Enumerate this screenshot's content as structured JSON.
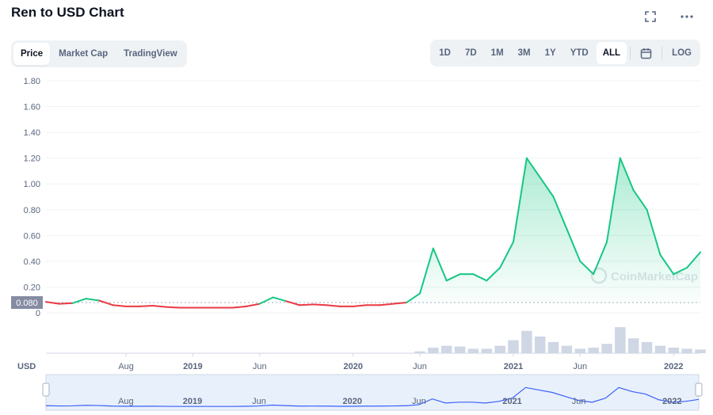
{
  "header": {
    "title": "Ren to USD Chart",
    "expand_icon": "expand-icon",
    "more_icon": "more-dots-icon"
  },
  "tabs": [
    {
      "label": "Price",
      "active": true
    },
    {
      "label": "Market Cap",
      "active": false
    },
    {
      "label": "TradingView",
      "active": false
    }
  ],
  "ranges": [
    {
      "label": "1D",
      "active": false
    },
    {
      "label": "7D",
      "active": false
    },
    {
      "label": "1M",
      "active": false
    },
    {
      "label": "3M",
      "active": false
    },
    {
      "label": "1Y",
      "active": false
    },
    {
      "label": "YTD",
      "active": false
    },
    {
      "label": "ALL",
      "active": true
    }
  ],
  "log_label": "LOG",
  "calendar_icon": "calendar-icon",
  "chart_data": {
    "type": "line",
    "ylim": [
      0,
      1.8
    ],
    "y_ticks": [
      "1.80",
      "1.60",
      "1.40",
      "1.20",
      "1.00",
      "0.80",
      "0.60",
      "0.40",
      "0.20",
      "0"
    ],
    "y_tick_values": [
      1.8,
      1.6,
      1.4,
      1.2,
      1.0,
      0.8,
      0.6,
      0.4,
      0.2,
      0
    ],
    "x_ticks": [
      {
        "label": "Aug",
        "date": "2018-08",
        "bold": false
      },
      {
        "label": "2019",
        "date": "2019-01",
        "bold": true
      },
      {
        "label": "Jun",
        "date": "2019-06",
        "bold": false
      },
      {
        "label": "2020",
        "date": "2020-01",
        "bold": true
      },
      {
        "label": "Jun",
        "date": "2020-06",
        "bold": false
      },
      {
        "label": "2021",
        "date": "2021-01",
        "bold": true
      },
      {
        "label": "Jun",
        "date": "2021-06",
        "bold": false
      },
      {
        "label": "2022",
        "date": "2022-01",
        "bold": true
      }
    ],
    "x_range": [
      "2018-02",
      "2022-03"
    ],
    "currency_label": "USD",
    "reference_price": 0.08,
    "reference_label": "0.080",
    "watermark": "CoinMarketCap",
    "up_color": "#16c784",
    "down_color": "#ea3943",
    "series": [
      {
        "dates": [
          "2018-02",
          "2018-03",
          "2018-04",
          "2018-05",
          "2018-06",
          "2018-07",
          "2018-08",
          "2018-09",
          "2018-10",
          "2018-11",
          "2018-12",
          "2019-01",
          "2019-02",
          "2019-03",
          "2019-04",
          "2019-05",
          "2019-06",
          "2019-07",
          "2019-08",
          "2019-09",
          "2019-10",
          "2019-11",
          "2019-12",
          "2020-01",
          "2020-02",
          "2020-03",
          "2020-04",
          "2020-05",
          "2020-06",
          "2020-07",
          "2020-08",
          "2020-09",
          "2020-10",
          "2020-11",
          "2020-12",
          "2021-01",
          "2021-02",
          "2021-03",
          "2021-04",
          "2021-05",
          "2021-06",
          "2021-07",
          "2021-08",
          "2021-09",
          "2021-10",
          "2021-11",
          "2021-12",
          "2022-01",
          "2022-02",
          "2022-03"
        ],
        "values": [
          0.085,
          0.07,
          0.075,
          0.11,
          0.095,
          0.06,
          0.05,
          0.05,
          0.055,
          0.045,
          0.04,
          0.04,
          0.04,
          0.04,
          0.04,
          0.05,
          0.07,
          0.12,
          0.09,
          0.06,
          0.065,
          0.06,
          0.05,
          0.05,
          0.06,
          0.06,
          0.07,
          0.08,
          0.15,
          0.5,
          0.25,
          0.3,
          0.3,
          0.25,
          0.35,
          0.55,
          1.2,
          1.05,
          0.9,
          0.65,
          0.4,
          0.3,
          0.55,
          1.2,
          0.95,
          0.8,
          0.45,
          0.3,
          0.35,
          0.47
        ]
      }
    ],
    "volume": [
      0,
      0,
      0,
      0,
      0,
      0,
      0,
      0,
      0,
      0,
      0,
      0,
      0,
      0,
      0,
      0,
      0,
      0,
      0,
      0,
      0,
      0,
      0,
      0,
      0,
      0,
      0,
      0,
      0.05,
      0.15,
      0.2,
      0.18,
      0.12,
      0.12,
      0.2,
      0.35,
      0.6,
      0.45,
      0.3,
      0.2,
      0.12,
      0.15,
      0.25,
      0.7,
      0.4,
      0.3,
      0.2,
      0.15,
      0.12,
      0.1
    ],
    "navigator_labels": [
      {
        "label": "Aug",
        "date": "2018-08",
        "bold": false
      },
      {
        "label": "2019",
        "date": "2019-01",
        "bold": true
      },
      {
        "label": "Jun",
        "date": "2019-06",
        "bold": false
      },
      {
        "label": "2020",
        "date": "2020-01",
        "bold": true
      },
      {
        "label": "Jun",
        "date": "2020-06",
        "bold": false
      },
      {
        "label": "2021",
        "date": "2021-01",
        "bold": true
      },
      {
        "label": "Jun",
        "date": "2021-06",
        "bold": false
      },
      {
        "label": "2022",
        "date": "2022-01",
        "bold": true
      }
    ]
  }
}
